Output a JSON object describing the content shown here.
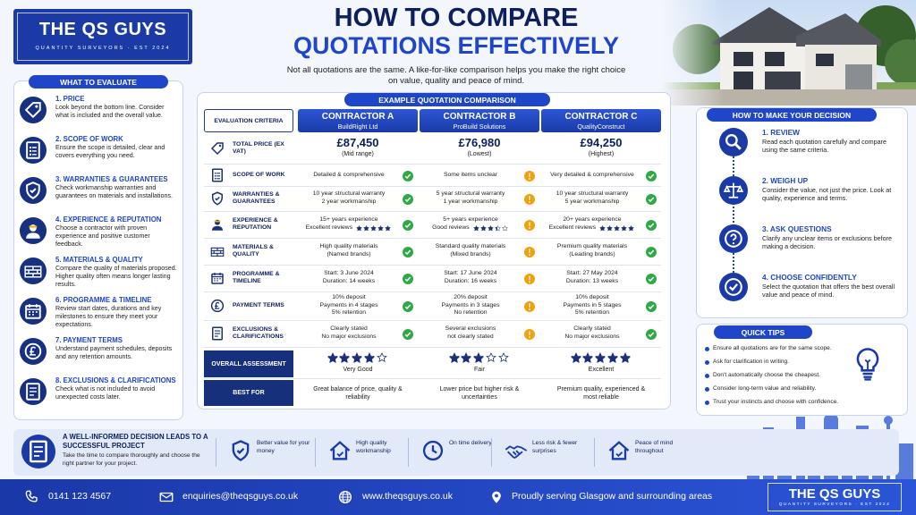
{
  "brand": {
    "name": "THE QS GUYS",
    "tagline": "QUANTITY SURVEYORS · EST 2024"
  },
  "header": {
    "title_line1": "HOW TO COMPARE",
    "title_line2": "QUOTATIONS EFFECTIVELY",
    "subtitle": "Not all quotations are the same. A like-for-like comparison helps you make the right choice on value, quality and peace of mind."
  },
  "evaluate": {
    "heading": "WHAT TO EVALUATE",
    "items": [
      {
        "title": "1. PRICE",
        "text": "Look beyond the bottom line. Consider what is included and the overall value."
      },
      {
        "title": "2. SCOPE OF WORK",
        "text": "Ensure the scope is detailed, clear and covers everything you need."
      },
      {
        "title": "3. WARRANTIES & GUARANTEES",
        "text": "Check workmanship warranties and guarantees on materials and installations."
      },
      {
        "title": "4. EXPERIENCE & REPUTATION",
        "text": "Choose a contractor with proven experience and positive customer feedback."
      },
      {
        "title": "5. MATERIALS & QUALITY",
        "text": "Compare the quality of materials proposed. Higher quality often means longer lasting results."
      },
      {
        "title": "6. PROGRAMME & TIMELINE",
        "text": "Review start dates, durations and key milestones to ensure they meet your expectations."
      },
      {
        "title": "7. PAYMENT TERMS",
        "text": "Understand payment schedules, deposits and any retention amounts."
      },
      {
        "title": "8. EXCLUSIONS & CLARIFICATIONS",
        "text": "Check what is not included to avoid unexpected costs later."
      }
    ]
  },
  "comparison": {
    "heading": "EXAMPLE QUOTATION COMPARISON",
    "criteria_header": "EVALUATION CRITERIA",
    "price_label": "TOTAL PRICE (EX VAT)",
    "contractors": [
      {
        "name": "CONTRACTOR A",
        "company": "BuildRight Ltd",
        "price": "£87,450",
        "price_note": "(Mid range)"
      },
      {
        "name": "CONTRACTOR B",
        "company": "ProBuild Solutions",
        "price": "£76,980",
        "price_note": "(Lowest)"
      },
      {
        "name": "CONTRACTOR C",
        "company": "QualityConstruct",
        "price": "£94,250",
        "price_note": "(Highest)"
      }
    ],
    "rows": [
      {
        "label": "SCOPE OF WORK",
        "cells": [
          {
            "lines": [
              "Detailed & comprehensive"
            ],
            "status": "ok"
          },
          {
            "lines": [
              "Some items unclear"
            ],
            "status": "warn"
          },
          {
            "lines": [
              "Very detailed & comprehensive"
            ],
            "status": "ok"
          }
        ]
      },
      {
        "label": "WARRANTIES & GUARANTEES",
        "cells": [
          {
            "lines": [
              "10 year structural warranty",
              "2 year workmanship"
            ],
            "status": "ok"
          },
          {
            "lines": [
              "5 year structural warranty",
              "1 year workmanship"
            ],
            "status": "warn"
          },
          {
            "lines": [
              "10 year structural warranty",
              "5 year workmanship"
            ],
            "status": "ok"
          }
        ]
      },
      {
        "label": "EXPERIENCE & REPUTATION",
        "cells": [
          {
            "lines": [
              "15+ years experience",
              "Excellent reviews"
            ],
            "stars": 5,
            "status": "ok"
          },
          {
            "lines": [
              "5+ years experience",
              "Good reviews"
            ],
            "stars": 3.5,
            "status": "warn"
          },
          {
            "lines": [
              "20+ years experience",
              "Excellent reviews"
            ],
            "stars": 5,
            "status": "ok"
          }
        ]
      },
      {
        "label": "MATERIALS & QUALITY",
        "cells": [
          {
            "lines": [
              "High quality materials",
              "(Named brands)"
            ],
            "status": "ok"
          },
          {
            "lines": [
              "Standard quality materials",
              "(Mixed brands)"
            ],
            "status": "warn"
          },
          {
            "lines": [
              "Premium quality materials",
              "(Leading brands)"
            ],
            "status": "ok"
          }
        ]
      },
      {
        "label": "PROGRAMME & TIMELINE",
        "cells": [
          {
            "lines": [
              "Start: 3 June 2024",
              "Duration: 14 weeks"
            ],
            "status": "ok"
          },
          {
            "lines": [
              "Start: 17 June 2024",
              "Duration: 16 weeks"
            ],
            "status": "warn"
          },
          {
            "lines": [
              "Start: 27 May 2024",
              "Duration: 13 weeks"
            ],
            "status": "ok"
          }
        ]
      },
      {
        "label": "PAYMENT TERMS",
        "cells": [
          {
            "lines": [
              "10% deposit",
              "Payments in 4 stages",
              "5% retention"
            ],
            "status": "ok"
          },
          {
            "lines": [
              "20% deposit",
              "Payments in 3 stages",
              "No retention"
            ],
            "status": "warn"
          },
          {
            "lines": [
              "10% deposit",
              "Payments in 5 stages",
              "5% retention"
            ],
            "status": "ok"
          }
        ]
      },
      {
        "label": "EXCLUSIONS & CLARIFICATIONS",
        "cells": [
          {
            "lines": [
              "Clearly stated",
              "No major exclusions"
            ],
            "status": "ok"
          },
          {
            "lines": [
              "Several exclusions",
              "not clearly stated"
            ],
            "status": "warn"
          },
          {
            "lines": [
              "Clearly stated",
              "No major exclusions"
            ],
            "status": "ok"
          }
        ]
      }
    ],
    "overall": {
      "label": "OVERALL ASSESSMENT",
      "stars_max": 5,
      "ratings": [
        4,
        3,
        5
      ],
      "verdicts": [
        "Very Good",
        "Fair",
        "Excellent"
      ]
    },
    "best_for": {
      "label": "BEST FOR",
      "texts": [
        "Great balance of price, quality & reliability",
        "Lower price but higher risk & uncertainties",
        "Premium quality, experienced & most reliable"
      ]
    }
  },
  "decision": {
    "heading": "HOW TO MAKE YOUR DECISION",
    "steps": [
      {
        "title": "1. REVIEW",
        "text": "Read each quotation carefully and compare using the same criteria."
      },
      {
        "title": "2. WEIGH UP",
        "text": "Consider the value, not just the price. Look at quality, experience and terms."
      },
      {
        "title": "3. ASK QUESTIONS",
        "text": "Clarify any unclear items or exclusions before making a decision."
      },
      {
        "title": "4. CHOOSE CONFIDENTLY",
        "text": "Select the quotation that offers the best overall value and peace of mind."
      }
    ]
  },
  "tips": {
    "heading": "QUICK TIPS",
    "items": [
      "Ensure all quotations are for the same scope.",
      "Ask for clarification in writing.",
      "Don't automatically choose the cheapest.",
      "Consider long-term value and reliability.",
      "Trust your instincts and choose with confidence."
    ]
  },
  "banner": {
    "headline": "A WELL-INFORMED DECISION LEADS TO A SUCCESSFUL PROJECT",
    "text": "Take the time to compare thoroughly and choose the right partner for your project.",
    "benefits": [
      "Better value for your money",
      "High quality workmanship",
      "On time delivery",
      "Less risk & fewer surprises",
      "Peace of mind throughout"
    ]
  },
  "footer": {
    "phone": "0141 123 4567",
    "email": "enquiries@theqsguys.co.uk",
    "website": "www.theqsguys.co.uk",
    "location": "Proudly serving Glasgow and surrounding areas"
  }
}
